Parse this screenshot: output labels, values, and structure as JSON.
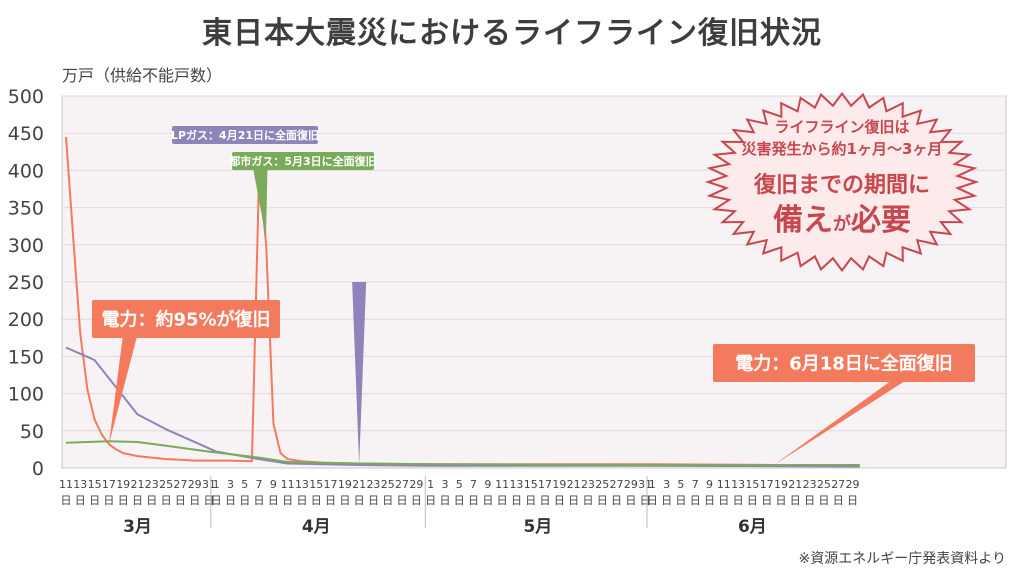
{
  "title": "東日本大震災におけるライフライン復旧状況",
  "source": "※資源エネルギー庁発表資料より",
  "chart_data": {
    "type": "line",
    "ylabel": "万戸（供給不能戸数）",
    "ylim": [
      0,
      500
    ],
    "yticks": [
      "0",
      "50",
      "100",
      "150",
      "200",
      "250",
      "300",
      "350",
      "400",
      "450",
      "500"
    ],
    "day_ticks": {
      "3月": [
        "11",
        "13",
        "15",
        "17",
        "19",
        "21",
        "23",
        "25",
        "27",
        "29",
        "31"
      ],
      "4月": [
        "1",
        "3",
        "5",
        "7",
        "9",
        "11",
        "13",
        "15",
        "17",
        "19",
        "21",
        "23",
        "25",
        "27",
        "29"
      ],
      "5月": [
        "1",
        "3",
        "5",
        "7",
        "9",
        "11",
        "13",
        "15",
        "17",
        "19",
        "21",
        "23",
        "25",
        "27",
        "29",
        "31"
      ],
      "6月": [
        "1",
        "3",
        "5",
        "7",
        "9",
        "11",
        "13",
        "15",
        "17",
        "19",
        "21",
        "23",
        "25",
        "27",
        "29"
      ]
    },
    "day_unit": "日",
    "months": [
      "3月",
      "4月",
      "5月",
      "6月"
    ],
    "series": [
      {
        "key": "electric",
        "color": "#f47a5e",
        "points": [
          [
            "3/11",
            445
          ],
          [
            "3/12",
            310
          ],
          [
            "3/13",
            180
          ],
          [
            "3/14",
            105
          ],
          [
            "3/15",
            65
          ],
          [
            "3/16",
            45
          ],
          [
            "3/17",
            32
          ],
          [
            "3/18",
            25
          ],
          [
            "3/19",
            20
          ],
          [
            "3/21",
            16
          ],
          [
            "3/23",
            14
          ],
          [
            "3/25",
            12
          ],
          [
            "3/27",
            11
          ],
          [
            "3/29",
            10
          ],
          [
            "3/31",
            10
          ],
          [
            "4/3",
            10
          ],
          [
            "4/6",
            9
          ],
          [
            "4/7",
            395
          ],
          [
            "4/8",
            300
          ],
          [
            "4/9",
            60
          ],
          [
            "4/10",
            20
          ],
          [
            "4/11",
            12
          ],
          [
            "4/13",
            9
          ],
          [
            "4/16",
            7
          ],
          [
            "4/21",
            6
          ],
          [
            "5/1",
            5
          ],
          [
            "5/15",
            5
          ],
          [
            "6/1",
            5
          ],
          [
            "6/18",
            4
          ],
          [
            "6/30",
            3
          ]
        ]
      },
      {
        "key": "lp_gas",
        "color": "#8e84b9",
        "points": [
          [
            "3/11",
            162
          ],
          [
            "3/15",
            145
          ],
          [
            "3/21",
            72
          ],
          [
            "3/25",
            52
          ],
          [
            "4/1",
            22
          ],
          [
            "4/7",
            12
          ],
          [
            "4/11",
            6
          ],
          [
            "4/21",
            4
          ],
          [
            "5/1",
            3
          ],
          [
            "5/31",
            3
          ],
          [
            "6/30",
            2
          ]
        ]
      },
      {
        "key": "city_gas",
        "color": "#7aab5a",
        "points": [
          [
            "3/11",
            34
          ],
          [
            "3/17",
            36
          ],
          [
            "3/21",
            35
          ],
          [
            "3/25",
            30
          ],
          [
            "3/31",
            22
          ],
          [
            "4/7",
            14
          ],
          [
            "4/11",
            8
          ],
          [
            "4/21",
            6
          ],
          [
            "5/3",
            5
          ],
          [
            "5/31",
            4
          ],
          [
            "6/30",
            4
          ]
        ]
      }
    ],
    "annotations": [
      {
        "text": "LPガス：4月21日に全面復旧",
        "color": "#8e84b9",
        "date": "4/21"
      },
      {
        "text": "都市ガス：5月3日に全面復旧",
        "color": "#7aab5a",
        "date": "5/3"
      },
      {
        "text": "電力：約95%が復旧",
        "color": "#f47a5e",
        "date": "3/17"
      },
      {
        "text": "電力：6月18日に全面復旧",
        "color": "#f47a5e",
        "date": "6/18"
      }
    ],
    "note": {
      "line1": "ライフライン復旧は",
      "line2": "災害発生から約1ヶ月～3ヶ月",
      "line3": "復旧までの期間に",
      "line4a": "備え",
      "line4b": "が",
      "line4c": "必要"
    }
  }
}
